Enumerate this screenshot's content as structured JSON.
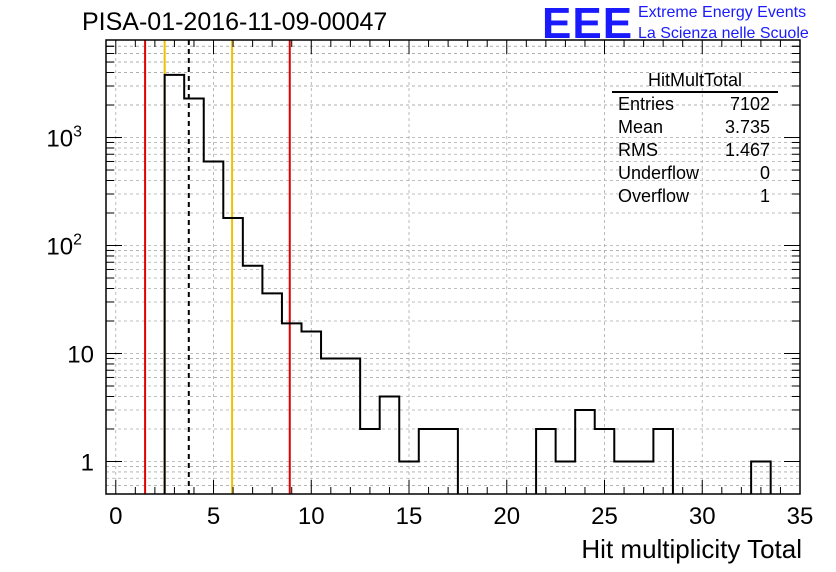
{
  "title": "PISA-01-2016-11-09-00047",
  "logo": {
    "text": "EEE",
    "line1": "Extreme Energy Events",
    "line2": "La Scienza nelle Scuole",
    "color": "#1a1aff"
  },
  "stats": {
    "name": "HitMultTotal",
    "rows": [
      {
        "label": "Entries",
        "value": "7102"
      },
      {
        "label": "Mean",
        "value": "3.735"
      },
      {
        "label": "RMS",
        "value": "1.467"
      },
      {
        "label": "Underflow",
        "value": "0"
      },
      {
        "label": "Overflow",
        "value": "1"
      }
    ]
  },
  "chart_data": {
    "type": "histogram",
    "xlabel": "Hit multiplicity Total",
    "ylabel": "",
    "xlim": [
      -0.5,
      35
    ],
    "ylim": [
      0.5,
      8000
    ],
    "yscale": "log",
    "grid": true,
    "x_ticks": [
      "0",
      "5",
      "10",
      "15",
      "20",
      "25",
      "30",
      "35"
    ],
    "y_ticks": [
      {
        "value": 1,
        "label": "1"
      },
      {
        "value": 10,
        "label": "10"
      },
      {
        "value": 100,
        "label": "10",
        "sup": "2"
      },
      {
        "value": 1000,
        "label": "10",
        "sup": "3"
      }
    ],
    "bins": [
      {
        "x": 3,
        "count": 3800
      },
      {
        "x": 4,
        "count": 2300
      },
      {
        "x": 5,
        "count": 600
      },
      {
        "x": 6,
        "count": 180
      },
      {
        "x": 7,
        "count": 65
      },
      {
        "x": 8,
        "count": 36
      },
      {
        "x": 9,
        "count": 19
      },
      {
        "x": 10,
        "count": 16
      },
      {
        "x": 11,
        "count": 9
      },
      {
        "x": 12,
        "count": 9
      },
      {
        "x": 13,
        "count": 2
      },
      {
        "x": 14,
        "count": 4
      },
      {
        "x": 15,
        "count": 1
      },
      {
        "x": 16,
        "count": 2
      },
      {
        "x": 17,
        "count": 2
      },
      {
        "x": 22,
        "count": 2
      },
      {
        "x": 23,
        "count": 1
      },
      {
        "x": 24,
        "count": 3
      },
      {
        "x": 25,
        "count": 2
      },
      {
        "x": 26,
        "count": 1
      },
      {
        "x": 27,
        "count": 1
      },
      {
        "x": 28,
        "count": 2
      },
      {
        "x": 33,
        "count": 1
      }
    ],
    "bin_width": 1,
    "reference_lines": [
      {
        "x": 1.5,
        "color": "#e00000",
        "style": "solid"
      },
      {
        "x": 2.5,
        "color": "#f0c000",
        "style": "solid"
      },
      {
        "x": 3.735,
        "color": "#000000",
        "style": "dashed"
      },
      {
        "x": 5.95,
        "color": "#f0c000",
        "style": "solid"
      },
      {
        "x": 8.9,
        "color": "#e00000",
        "style": "solid"
      }
    ]
  }
}
